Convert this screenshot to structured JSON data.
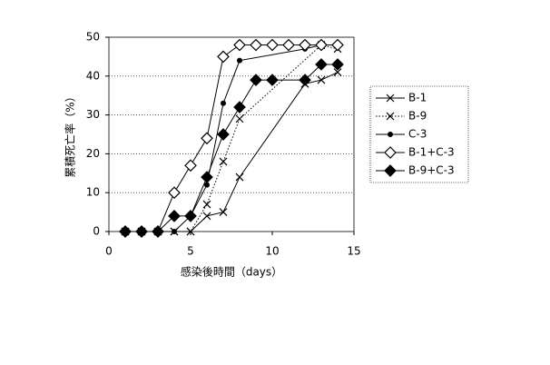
{
  "chart_data": {
    "type": "line",
    "xlabel": "感染後時間（days）",
    "ylabel": "累積死亡率（%）",
    "xlim": [
      0,
      15
    ],
    "xticks": [
      0,
      5,
      10,
      15
    ],
    "ylim": [
      0,
      50
    ],
    "yticks": [
      0,
      10,
      20,
      30,
      40,
      50
    ],
    "grid": true,
    "legend": "right",
    "series": [
      {
        "name": "B-1",
        "color": "#000000",
        "marker": "x",
        "dash": "solid",
        "x": [
          1,
          2,
          3,
          4,
          5,
          6,
          7,
          8,
          12,
          13,
          14
        ],
        "values": [
          0,
          0,
          0,
          0,
          0,
          4,
          5,
          14,
          38,
          39,
          41
        ]
      },
      {
        "name": "B-9",
        "color": "#000000",
        "marker": "x",
        "dash": "dotted",
        "x": [
          1,
          2,
          3,
          4,
          5,
          6,
          7,
          8,
          13,
          14
        ],
        "values": [
          0,
          0,
          0,
          0,
          0,
          7,
          18,
          29,
          48,
          47
        ]
      },
      {
        "name": "C-3",
        "color": "#000000",
        "marker": "dot",
        "dash": "solid",
        "x": [
          1,
          2,
          3,
          4,
          5,
          6,
          7,
          8,
          12,
          13,
          14
        ],
        "values": [
          0,
          0,
          0,
          0,
          4,
          12,
          33,
          44,
          47,
          48,
          48
        ]
      },
      {
        "name": "B-1+C-3",
        "color": "#000000",
        "marker": "diamond-open",
        "dash": "solid",
        "x": [
          1,
          2,
          3,
          4,
          5,
          6,
          7,
          8,
          9,
          10,
          11,
          12,
          13,
          14
        ],
        "values": [
          0,
          0,
          0,
          10,
          17,
          24,
          45,
          48,
          48,
          48,
          48,
          48,
          48,
          48
        ]
      },
      {
        "name": "B-9+C-3",
        "color": "#000000",
        "marker": "diamond-filled",
        "dash": "solid",
        "x": [
          1,
          2,
          3,
          4,
          5,
          6,
          7,
          8,
          9,
          10,
          12,
          13,
          14
        ],
        "values": [
          0,
          0,
          0,
          4,
          4,
          14,
          25,
          32,
          39,
          39,
          39,
          43,
          43
        ]
      }
    ]
  }
}
